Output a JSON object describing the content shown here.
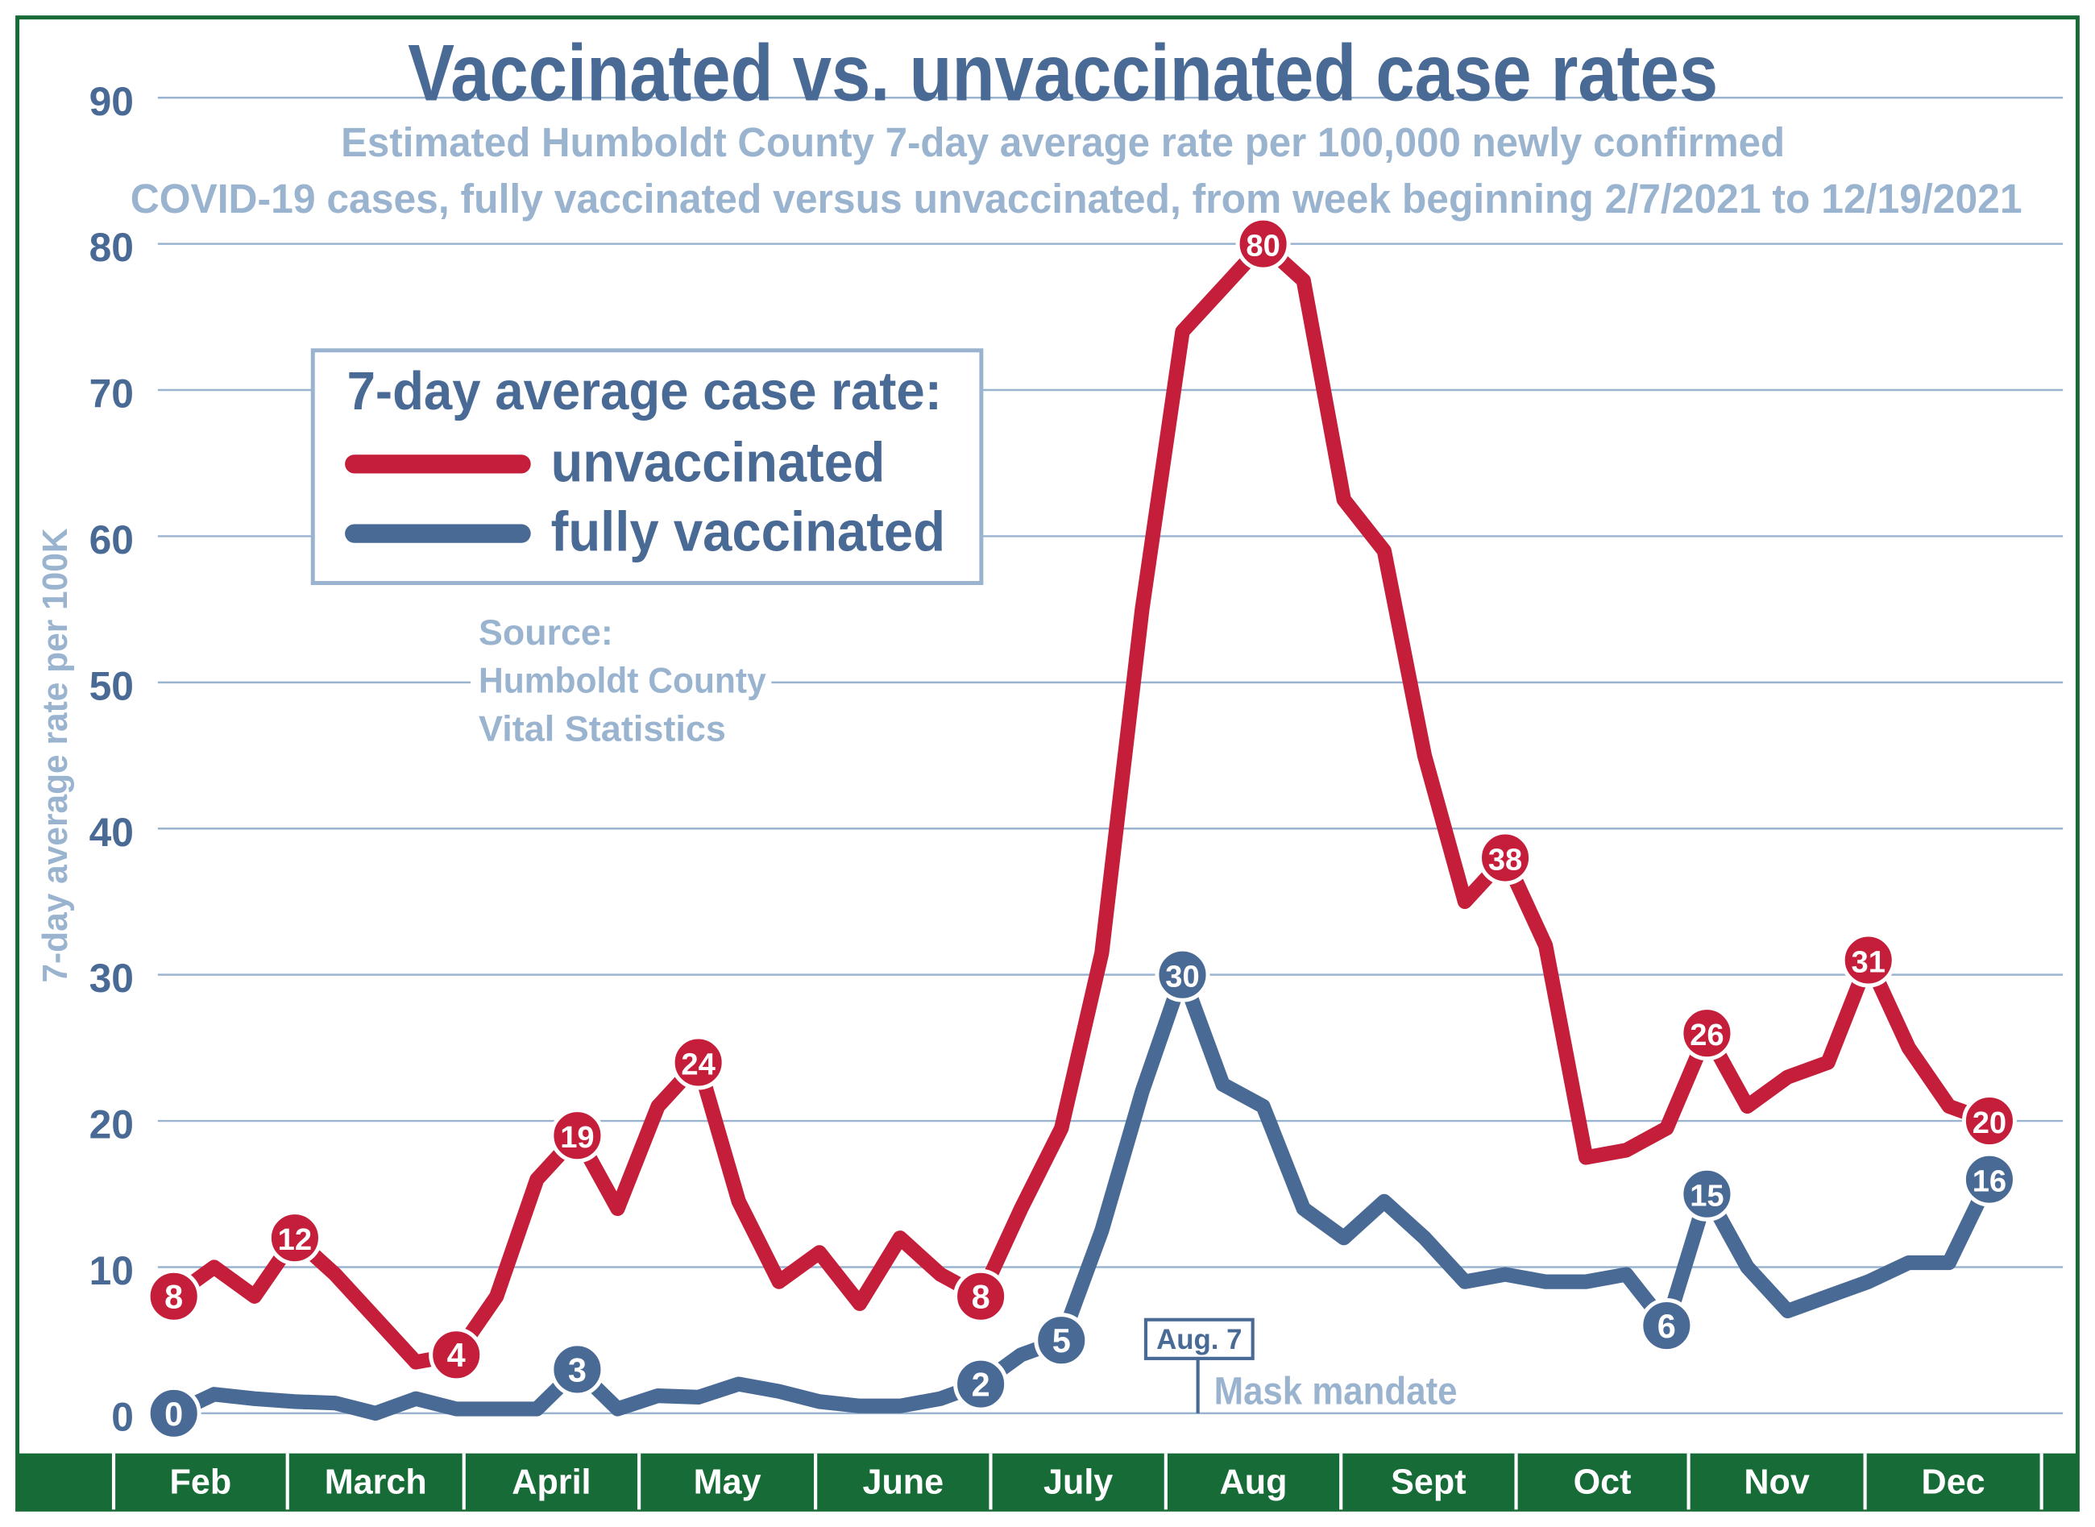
{
  "chart_data": {
    "type": "line",
    "title": "Vaccinated vs. unvaccinated case rates",
    "subtitle_lines": [
      "Estimated Humboldt County 7-day average rate per 100,000 newly confirmed",
      "COVID-19 cases,  fully vaccinated versus unvaccinated, from week beginning 2/7/2021 to 12/19/2021"
    ],
    "ylabel": "7-day average rate per 100K",
    "ylim": [
      0,
      90
    ],
    "yticks": [
      0,
      10,
      20,
      30,
      40,
      50,
      60,
      70,
      80,
      90
    ],
    "grid": true,
    "x": [
      "2021-02-07",
      "2021-02-14",
      "2021-02-21",
      "2021-02-28",
      "2021-03-07",
      "2021-03-14",
      "2021-03-21",
      "2021-03-28",
      "2021-04-04",
      "2021-04-11",
      "2021-04-18",
      "2021-04-25",
      "2021-05-02",
      "2021-05-09",
      "2021-05-16",
      "2021-05-23",
      "2021-05-30",
      "2021-06-06",
      "2021-06-13",
      "2021-06-20",
      "2021-06-27",
      "2021-07-04",
      "2021-07-11",
      "2021-07-18",
      "2021-07-25",
      "2021-08-01",
      "2021-08-08",
      "2021-08-15",
      "2021-08-22",
      "2021-08-29",
      "2021-09-05",
      "2021-09-12",
      "2021-09-19",
      "2021-09-26",
      "2021-10-03",
      "2021-10-10",
      "2021-10-17",
      "2021-10-24",
      "2021-10-31",
      "2021-11-07",
      "2021-11-14",
      "2021-11-21",
      "2021-11-28",
      "2021-12-05",
      "2021-12-12",
      "2021-12-19"
    ],
    "month_labels": [
      "Feb",
      "March",
      "April",
      "May",
      "June",
      "July",
      "Aug",
      "Sept",
      "Oct",
      "Nov",
      "Dec"
    ],
    "legend": {
      "title": "7-day average case rate:",
      "placement": "upper-left"
    },
    "series": [
      {
        "name": "unvaccinated",
        "color": "#c41e3a",
        "values": [
          8,
          10,
          8,
          12,
          9.5,
          6.5,
          3.5,
          4,
          8,
          16,
          19,
          14,
          21,
          24,
          14.5,
          9,
          11,
          7.5,
          12,
          9.5,
          8,
          14,
          19.5,
          31.5,
          55,
          74,
          77,
          80,
          77.5,
          62.5,
          59,
          45,
          35,
          38,
          32,
          17.5,
          18,
          19.5,
          26,
          21,
          23,
          24,
          31,
          25,
          21,
          20
        ],
        "labeled_points": [
          {
            "index": 0,
            "label": "8"
          },
          {
            "index": 3,
            "label": "12"
          },
          {
            "index": 7,
            "label": "4"
          },
          {
            "index": 10,
            "label": "19"
          },
          {
            "index": 13,
            "label": "24"
          },
          {
            "index": 20,
            "label": "8"
          },
          {
            "index": 27,
            "label": "80"
          },
          {
            "index": 33,
            "label": "38"
          },
          {
            "index": 38,
            "label": "26"
          },
          {
            "index": 42,
            "label": "31"
          },
          {
            "index": 45,
            "label": "20"
          }
        ]
      },
      {
        "name": "fully vaccinated",
        "color": "#4a6a96",
        "values": [
          0,
          1.3,
          1,
          0.8,
          0.7,
          0,
          1,
          0.3,
          0.3,
          0.3,
          3,
          0.3,
          1.2,
          1.1,
          2,
          1.5,
          0.8,
          0.5,
          0.5,
          1,
          2,
          4,
          5,
          12.5,
          22,
          30,
          22.5,
          21,
          14,
          12,
          14.5,
          12,
          9,
          9.5,
          9,
          9,
          9.5,
          6,
          15,
          10,
          7,
          8,
          9,
          10.3,
          10.3,
          16
        ],
        "labeled_points": [
          {
            "index": 0,
            "label": "0"
          },
          {
            "index": 10,
            "label": "3"
          },
          {
            "index": 20,
            "label": "2"
          },
          {
            "index": 22,
            "label": "5"
          },
          {
            "index": 25,
            "label": "30"
          },
          {
            "index": 37,
            "label": "6"
          },
          {
            "index": 38,
            "label": "15"
          },
          {
            "index": 45,
            "label": "16"
          }
        ]
      }
    ],
    "annotations": {
      "source": [
        "Source:",
        "Humboldt County",
        "Vital Statistics"
      ],
      "event_date": "Aug. 7",
      "event_label": "Mask mandate"
    }
  },
  "colors": {
    "frame_green": "#166b37",
    "grid": "#9ab4d0",
    "title_blue": "#4a6a96",
    "light_blue": "#9ab4d0"
  }
}
